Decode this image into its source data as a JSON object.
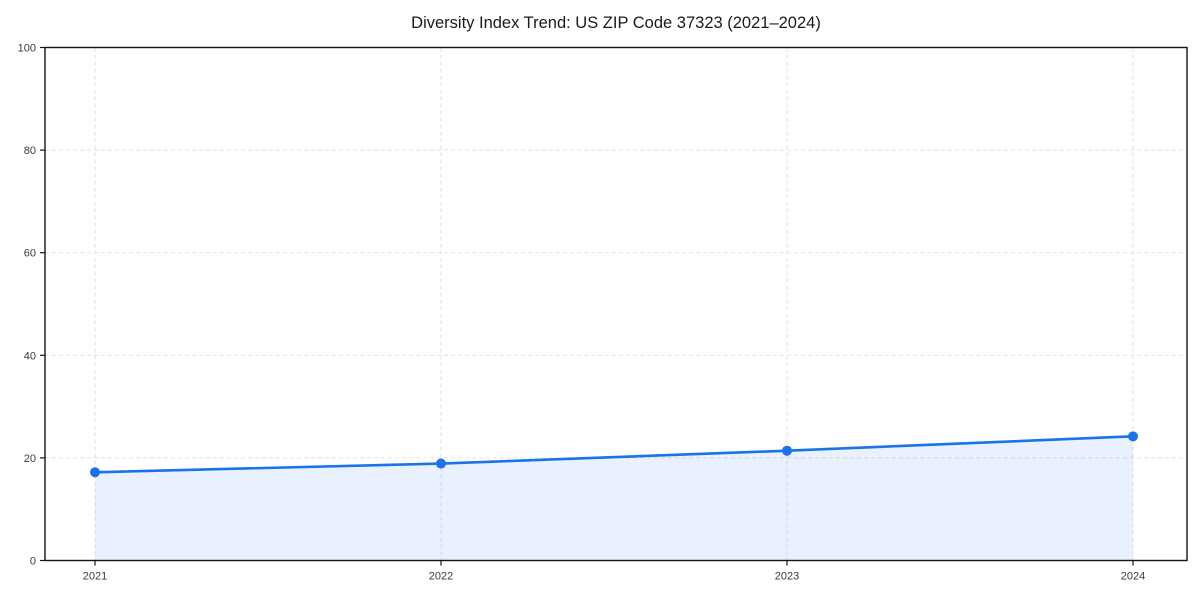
{
  "page": {
    "background": "#ffffff"
  },
  "chart_data": {
    "type": "area",
    "title": "Diversity Index Trend: US ZIP Code 37323 (2021–2024)",
    "categories": [
      "2021",
      "2022",
      "2023",
      "2024"
    ],
    "series": [
      {
        "name": "Diversity Index",
        "values": [
          17.2,
          18.9,
          21.4,
          24.2
        ]
      }
    ],
    "xlabel": "",
    "ylabel": "",
    "ylim": [
      0,
      100
    ],
    "yticks": [
      0,
      20,
      40,
      60,
      80,
      100
    ],
    "grid": "dashed-both-axes",
    "legend": "none",
    "marker": "circle",
    "colors": {
      "line": "#1a73e8",
      "marker": "#1a73e8",
      "fill": "#1a73e8",
      "fill_opacity": 0.1,
      "gridline": "#e2e2e2",
      "spine": "#141414",
      "tick_text": "#3b3b3b",
      "title_text": "#1a1a1a"
    }
  }
}
